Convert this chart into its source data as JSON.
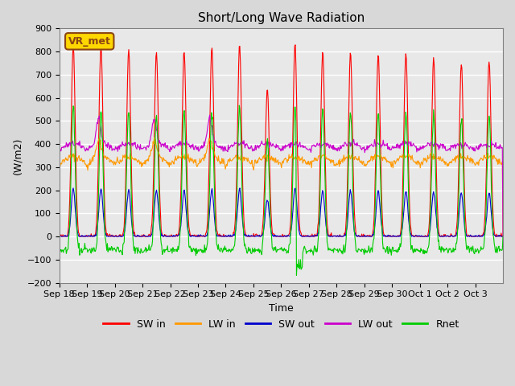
{
  "title": "Short/Long Wave Radiation",
  "xlabel": "Time",
  "ylabel": "(W/m2)",
  "ylim": [
    -200,
    900
  ],
  "yticks": [
    -200,
    -100,
    0,
    100,
    200,
    300,
    400,
    500,
    600,
    700,
    800,
    900
  ],
  "xtick_labels": [
    "Sep 18",
    "Sep 19",
    "Sep 20",
    "Sep 21",
    "Sep 22",
    "Sep 23",
    "Sep 24",
    "Sep 25",
    "Sep 26",
    "Sep 27",
    "Sep 28",
    "Sep 29",
    "Sep 30",
    "Oct 1",
    "Oct 2",
    "Oct 3"
  ],
  "station_label": "VR_met",
  "background_color": "#d8d8d8",
  "plot_bg_color": "#e8e8e8",
  "grid_color": "white",
  "colors": {
    "SW_in": "#ff0000",
    "LW_in": "#ff9900",
    "SW_out": "#0000cc",
    "LW_out": "#cc00cc",
    "Rnet": "#00cc00"
  },
  "legend_labels": [
    "SW in",
    "LW in",
    "SW out",
    "LW out",
    "Rnet"
  ],
  "n_days": 16,
  "points_per_day": 48
}
